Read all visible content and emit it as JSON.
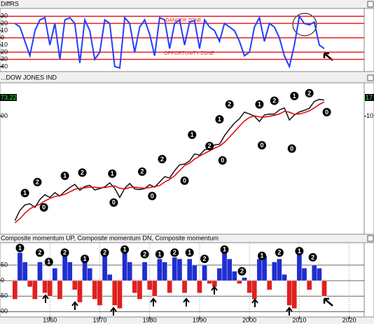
{
  "chart_data": [
    {
      "type": "line",
      "title": "DiffRS",
      "x": [
        1953,
        1954,
        1955,
        1956,
        1957,
        1958,
        1959,
        1960,
        1961,
        1962,
        1963,
        1964,
        1965,
        1966,
        1967,
        1968,
        1969,
        1970,
        1971,
        1972,
        1973,
        1974,
        1975,
        1976,
        1977,
        1978,
        1979,
        1980,
        1981,
        1982,
        1983,
        1984,
        1985,
        1986,
        1987,
        1988,
        1989,
        1990,
        1991,
        1992,
        1993,
        1994,
        1995,
        1996,
        1997,
        1998,
        1999,
        2000,
        2001,
        2002,
        2003,
        2004,
        2005,
        2006,
        2007,
        2008,
        2009,
        2010,
        2011,
        2012,
        2013,
        2014,
        2015
      ],
      "series": [
        {
          "color": "#1f3fff",
          "values": [
            20,
            15,
            -5,
            -25,
            10,
            25,
            28,
            -10,
            20,
            -30,
            25,
            28,
            20,
            -35,
            25,
            10,
            -30,
            -20,
            25,
            20,
            -40,
            -42,
            28,
            20,
            -20,
            15,
            25,
            5,
            -25,
            28,
            25,
            -15,
            20,
            25,
            -10,
            22,
            24,
            -15,
            25,
            15,
            10,
            -5,
            20,
            15,
            10,
            -5,
            -25,
            -20,
            15,
            28,
            -5,
            20,
            15,
            0,
            -25,
            -40,
            -10,
            30,
            20,
            18,
            22,
            -10,
            -15
          ]
        }
      ],
      "zone_lines": [
        30,
        20,
        0,
        -20,
        -30
      ],
      "zone_color": "#e82020",
      "annotations": [
        "DANGER ZONE",
        "OPPORTUNITY ZONE"
      ],
      "xlim": [
        1950,
        2023
      ],
      "ylim": [
        -45,
        38
      ],
      "yticks": [
        30,
        20,
        10,
        0,
        {
          "value": -10,
          "label": "10"
        },
        {
          "value": -20,
          "label": "20"
        },
        {
          "value": -30,
          "label": "30"
        },
        {
          "value": -40,
          "label": "40"
        }
      ]
    },
    {
      "type": "line",
      "title": "...DOW JONES IND",
      "log_scale": true,
      "x": [
        1953,
        1954,
        1955,
        1956,
        1957,
        1958,
        1959,
        1960,
        1961,
        1962,
        1963,
        1964,
        1965,
        1966,
        1967,
        1968,
        1969,
        1970,
        1971,
        1972,
        1973,
        1974,
        1975,
        1976,
        1977,
        1978,
        1979,
        1980,
        1981,
        1982,
        1983,
        1984,
        1985,
        1986,
        1987,
        1988,
        1989,
        1990,
        1991,
        1992,
        1993,
        1994,
        1995,
        1996,
        1997,
        1998,
        1999,
        2000,
        2001,
        2002,
        2003,
        2004,
        2005,
        2006,
        2007,
        2008,
        2009,
        2010,
        2011,
        2012,
        2013,
        2014,
        2015
      ],
      "series": [
        {
          "color": "#111111",
          "values": [
            280,
            400,
            480,
            500,
            440,
            580,
            680,
            620,
            730,
            650,
            760,
            870,
            970,
            790,
            900,
            940,
            800,
            840,
            890,
            1020,
            850,
            620,
            850,
            1000,
            830,
            810,
            840,
            960,
            880,
            1050,
            1260,
            1210,
            1550,
            1900,
            1940,
            2170,
            2750,
            2630,
            3170,
            3300,
            3750,
            3830,
            5120,
            6450,
            7900,
            9180,
            11500,
            10790,
            10020,
            8340,
            10450,
            10780,
            10720,
            12460,
            13260,
            8780,
            10430,
            11580,
            12220,
            13100,
            16580,
            17820,
            17400
          ]
        },
        {
          "color": "#e00000",
          "values": [
            260,
            300,
            360,
            420,
            460,
            490,
            550,
            600,
            640,
            660,
            690,
            750,
            820,
            850,
            860,
            880,
            880,
            860,
            870,
            900,
            920,
            850,
            830,
            870,
            880,
            860,
            850,
            870,
            900,
            930,
            1050,
            1150,
            1300,
            1550,
            1850,
            2000,
            2300,
            2550,
            2800,
            3050,
            3350,
            3600,
            4100,
            4900,
            5900,
            7100,
            8500,
            9600,
            10100,
            9800,
            9700,
            10000,
            10300,
            10800,
            11800,
            11500,
            10700,
            10800,
            11300,
            12000,
            13300,
            15000,
            16300
          ]
        }
      ],
      "markers": [
        {
          "x": 1955,
          "y": 720,
          "label": "1"
        },
        {
          "x": 1957.5,
          "y": 1050,
          "label": "2"
        },
        {
          "x": 1958.8,
          "y": 440,
          "label": "0"
        },
        {
          "x": 1963,
          "y": 1300,
          "label": "1"
        },
        {
          "x": 1966.5,
          "y": 1450,
          "label": "2"
        },
        {
          "x": 1972.5,
          "y": 1400,
          "label": "1"
        },
        {
          "x": 1978.5,
          "y": 1500,
          "label": "2"
        },
        {
          "x": 1972.8,
          "y": 520,
          "label": "0"
        },
        {
          "x": 1980.5,
          "y": 650,
          "label": "0"
        },
        {
          "x": 1982.5,
          "y": 2300,
          "label": "2"
        },
        {
          "x": 1987,
          "y": 1100,
          "label": "0"
        },
        {
          "x": 1988.5,
          "y": 5300,
          "label": "1"
        },
        {
          "x": 1992,
          "y": 3600,
          "label": "2"
        },
        {
          "x": 1994.6,
          "y": 2200,
          "label": "0"
        },
        {
          "x": 1994,
          "y": 9000,
          "label": "1"
        },
        {
          "x": 1996,
          "y": 15000,
          "label": "2"
        },
        {
          "x": 2002.5,
          "y": 3700,
          "label": "0"
        },
        {
          "x": 2002,
          "y": 15000,
          "label": "1"
        },
        {
          "x": 2005,
          "y": 17000,
          "label": "2"
        },
        {
          "x": 2008.5,
          "y": 3300,
          "label": "0"
        },
        {
          "x": 2009,
          "y": 20000,
          "label": "1"
        },
        {
          "x": 2012,
          "y": 22000,
          "label": "2"
        },
        {
          "x": 2015.5,
          "y": 11500,
          "label": "0"
        }
      ],
      "value_box_left": "73.22",
      "value_box_right": "17",
      "xlim": [
        1950,
        2023
      ],
      "ylim": [
        180,
        30000
      ],
      "yticks": [
        {
          "value": 10000,
          "label": "00"
        }
      ],
      "yticks_right": [
        {
          "value": 10000,
          "label": "10"
        }
      ]
    },
    {
      "type": "bar",
      "title": "Composite momentum UP, Composite momentum DN, Composite momentum",
      "x": [
        1953,
        1954,
        1955,
        1956,
        1957,
        1958,
        1959,
        1960,
        1961,
        1962,
        1963,
        1964,
        1965,
        1966,
        1967,
        1968,
        1969,
        1970,
        1971,
        1972,
        1973,
        1974,
        1975,
        1976,
        1977,
        1978,
        1979,
        1980,
        1981,
        1982,
        1983,
        1984,
        1985,
        1986,
        1987,
        1988,
        1989,
        1990,
        1991,
        1992,
        1993,
        1994,
        1995,
        1996,
        1997,
        1998,
        1999,
        2000,
        2001,
        2002,
        2003,
        2004,
        2005,
        2006,
        2007,
        2008,
        2009,
        2010,
        2011,
        2012,
        2013,
        2014,
        2015
      ],
      "values": [
        -60,
        90,
        60,
        -20,
        -60,
        60,
        -40,
        -50,
        40,
        -60,
        80,
        60,
        -30,
        -70,
        70,
        40,
        -60,
        -80,
        80,
        20,
        -80,
        -90,
        90,
        60,
        -40,
        -60,
        60,
        -30,
        -50,
        70,
        60,
        -40,
        75,
        70,
        -40,
        70,
        50,
        -40,
        50,
        -10,
        -20,
        40,
        90,
        70,
        30,
        -10,
        10,
        -40,
        -60,
        70,
        80,
        -30,
        60,
        70,
        20,
        -80,
        -90,
        90,
        40,
        -30,
        50,
        40,
        -50
      ],
      "positive_color": "#1f2fd0",
      "negative_color": "#e02020",
      "markers": [
        {
          "x": 1954,
          "y": 105,
          "label": "1"
        },
        {
          "x": 1958,
          "y": 90,
          "label": "2"
        },
        {
          "x": 1963,
          "y": 90,
          "label": "2"
        },
        {
          "x": 1959.8,
          "y": 60,
          "label": "1"
        },
        {
          "x": 1967,
          "y": 70,
          "label": "1"
        },
        {
          "x": 1971,
          "y": 90,
          "label": "2"
        },
        {
          "x": 1975,
          "y": 100,
          "label": "1"
        },
        {
          "x": 1979,
          "y": 85,
          "label": "2"
        },
        {
          "x": 1982,
          "y": 85,
          "label": "1"
        },
        {
          "x": 1985,
          "y": 90,
          "label": "2"
        },
        {
          "x": 1988,
          "y": 90,
          "label": "1"
        },
        {
          "x": 1991,
          "y": 70,
          "label": "2"
        },
        {
          "x": 1995,
          "y": 100,
          "label": "1"
        },
        {
          "x": 1998.5,
          "y": 30,
          "label": "2"
        },
        {
          "x": 2002.5,
          "y": 80,
          "label": "1"
        },
        {
          "x": 2006,
          "y": 90,
          "label": "2"
        },
        {
          "x": 2010,
          "y": 95,
          "label": "1"
        },
        {
          "x": 2012.7,
          "y": 75,
          "label": "2"
        }
      ],
      "xlim": [
        1950,
        2023
      ],
      "ylim": [
        -115,
        120
      ],
      "yticks": [
        50,
        0,
        {
          "value": -50,
          "label": "50"
        },
        {
          "value": -100,
          "label": "00"
        }
      ],
      "xticks": [
        1960,
        1970,
        1980,
        1990,
        2000,
        2010,
        2020
      ]
    }
  ]
}
